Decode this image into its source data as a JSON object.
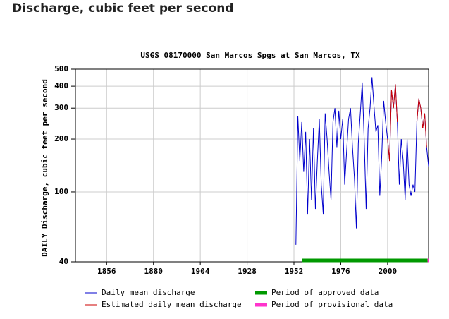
{
  "heading": "Discharge, cubic feet per second",
  "chart_data": {
    "type": "line",
    "title": "USGS 08170000 San Marcos Spgs at San Marcos, TX",
    "y_label": "DAILY Discharge, cubic feet per second",
    "log_y": true,
    "grid": true,
    "xlim": [
      1840,
      2021
    ],
    "xticks": [
      1856,
      1880,
      1904,
      1928,
      1952,
      1976,
      2000
    ],
    "ylim": [
      40,
      500
    ],
    "yticks": [
      40,
      100,
      200,
      300,
      400,
      500
    ],
    "x": [
      1953,
      1954,
      1955,
      1956,
      1957,
      1958,
      1959,
      1960,
      1961,
      1962,
      1963,
      1964,
      1965,
      1966,
      1967,
      1968,
      1969,
      1970,
      1971,
      1972,
      1973,
      1974,
      1975,
      1976,
      1977,
      1978,
      1979,
      1980,
      1981,
      1982,
      1983,
      1984,
      1985,
      1986,
      1987,
      1988,
      1989,
      1990,
      1991,
      1992,
      1993,
      1994,
      1995,
      1996,
      1997,
      1998,
      1999,
      2000,
      2001,
      2002,
      2003,
      2004,
      2005,
      2006,
      2007,
      2008,
      2009,
      2010,
      2011,
      2012,
      2013,
      2014,
      2015,
      2016,
      2017,
      2018,
      2019,
      2020,
      2021
    ],
    "series": [
      {
        "name": "Daily mean discharge",
        "color": "#0000cc",
        "values": [
          50,
          270,
          150,
          250,
          130,
          220,
          75,
          200,
          90,
          230,
          80,
          150,
          260,
          110,
          75,
          280,
          200,
          130,
          90,
          250,
          300,
          180,
          290,
          200,
          260,
          110,
          170,
          260,
          300,
          180,
          120,
          62,
          190,
          280,
          420,
          200,
          80,
          230,
          300,
          450,
          310,
          220,
          240,
          95,
          160,
          330,
          250,
          200,
          150,
          380,
          300,
          410,
          250,
          110,
          200,
          150,
          90,
          200,
          110,
          95,
          110,
          100,
          250,
          340,
          300,
          230,
          280,
          180,
          140
        ]
      },
      {
        "name": "Estimated daily mean discharge",
        "color": "#cc0000",
        "values": [
          null,
          null,
          null,
          null,
          null,
          null,
          null,
          null,
          null,
          null,
          null,
          null,
          null,
          null,
          null,
          null,
          null,
          null,
          null,
          null,
          null,
          null,
          null,
          null,
          null,
          null,
          null,
          null,
          null,
          null,
          null,
          null,
          null,
          null,
          null,
          null,
          null,
          null,
          null,
          null,
          null,
          null,
          null,
          null,
          null,
          null,
          null,
          200,
          150,
          380,
          300,
          410,
          250,
          null,
          null,
          null,
          null,
          null,
          null,
          null,
          null,
          null,
          250,
          340,
          300,
          230,
          280,
          180,
          null
        ]
      }
    ],
    "periods": [
      {
        "name": "Period of approved data",
        "color": "#009900",
        "start": 1956,
        "end": 2020.5
      },
      {
        "name": "Period of provisional data",
        "color": "#ff33cc",
        "start": 2020.5,
        "end": 2021
      }
    ]
  }
}
